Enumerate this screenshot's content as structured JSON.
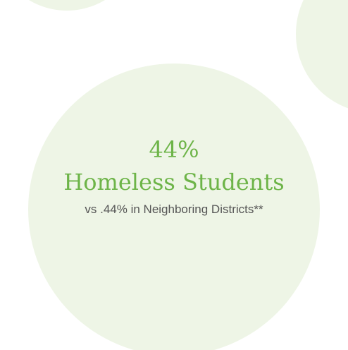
{
  "stat": {
    "value_text": "44%",
    "label": "Homeless Students",
    "comparison": "vs .44% in Neighboring Districts**"
  }
}
